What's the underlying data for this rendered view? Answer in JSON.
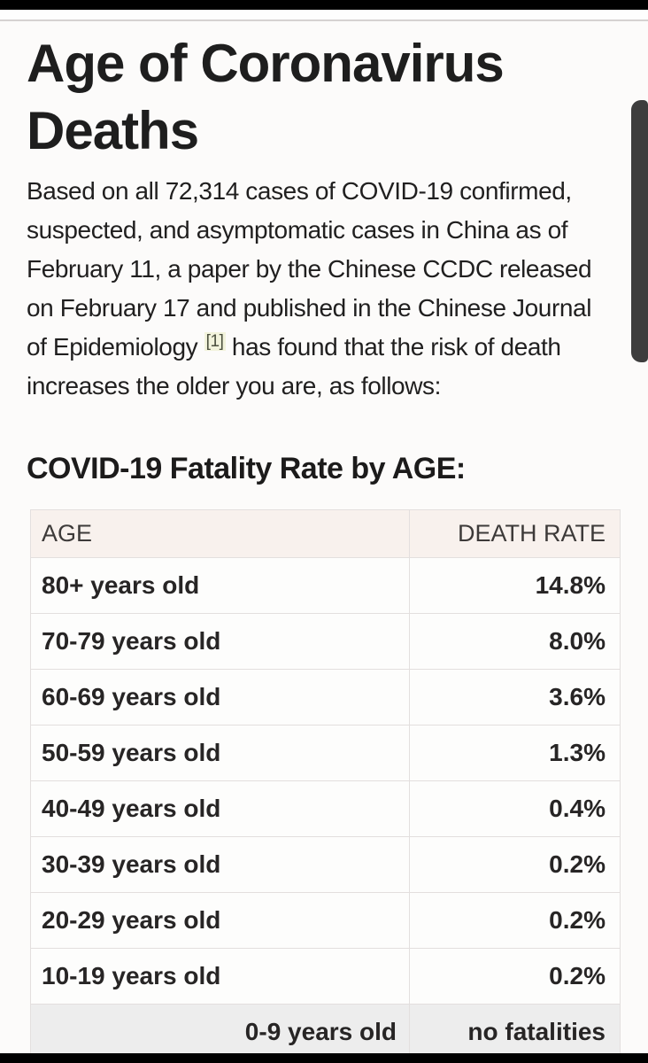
{
  "article": {
    "title": "Age of Coronavirus Deaths",
    "intro": {
      "text_before_citation": "Based on all 72,314 cases of COVID-19 confirmed, suspected, and asymptomatic cases in China as of February 11, a paper by the Chinese CCDC released on February 17 and published in the Chinese Journal of Epidemiology ",
      "citation_label": "[1]",
      "text_after_citation": " has found that the risk of death increases the older you are, as follows:"
    },
    "section_heading": "COVID-19 Fatality Rate by AGE:"
  },
  "table": {
    "headers": [
      "AGE",
      "DEATH RATE"
    ],
    "rows": [
      {
        "age": "80+ years old",
        "rate": "14.8%"
      },
      {
        "age": "70-79 years old",
        "rate": "8.0%"
      },
      {
        "age": "60-69 years old",
        "rate": "3.6%"
      },
      {
        "age": "50-59 years old",
        "rate": "1.3%"
      },
      {
        "age": "40-49 years old",
        "rate": "0.4%"
      },
      {
        "age": "30-39 years old",
        "rate": "0.2%"
      },
      {
        "age": "20-29 years old",
        "rate": "0.2%"
      },
      {
        "age": "10-19 years old",
        "rate": "0.2%"
      },
      {
        "age": "0-9 years old",
        "rate": "no fatalities"
      }
    ]
  },
  "colors": {
    "header_row_bg": "#f8f1ed",
    "last_row_bg": "#ededed",
    "table_border": "#e3dfde",
    "scrollbar_thumb": "#3d3d3d",
    "citation_highlight_bg": "#f2f3dc",
    "top_bar": "#000000",
    "bottom_bar": "#000000"
  }
}
